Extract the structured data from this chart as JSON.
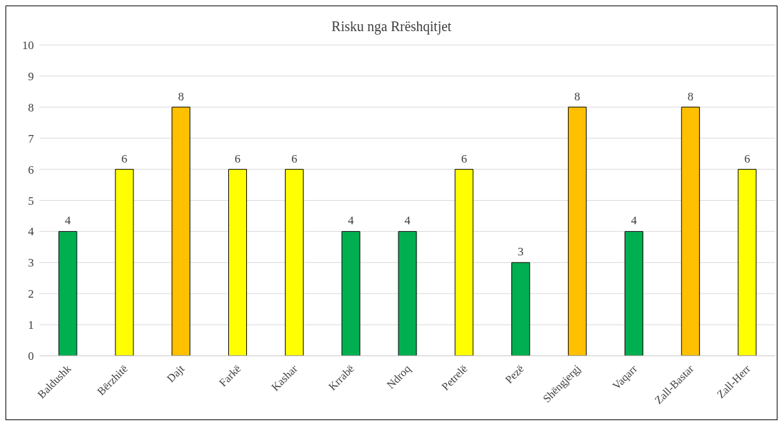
{
  "chart_data": {
    "type": "bar",
    "title": "Risku nga Rrëshqitjet",
    "categories": [
      "Baldushk",
      "Bërzhitë",
      "Dajt",
      "Farkë",
      "Kashar",
      "Krrabë",
      "Ndroq",
      "Petrelë",
      "Pezë",
      "Shëngjergj",
      "Vaqarr",
      "Zall-Bastar",
      "Zall-Herr"
    ],
    "values": [
      4,
      6,
      8,
      6,
      6,
      4,
      4,
      6,
      3,
      8,
      4,
      8,
      6
    ],
    "colors": [
      "#00b050",
      "#ffff00",
      "#ffc000",
      "#ffff00",
      "#ffff00",
      "#00b050",
      "#00b050",
      "#ffff00",
      "#00b050",
      "#ffc000",
      "#00b050",
      "#ffc000",
      "#ffff00"
    ],
    "ylim": [
      0,
      10
    ],
    "yticks": [
      0,
      1,
      2,
      3,
      4,
      5,
      6,
      7,
      8,
      9,
      10
    ],
    "grid": "y",
    "data_labels": true,
    "legend": false
  }
}
